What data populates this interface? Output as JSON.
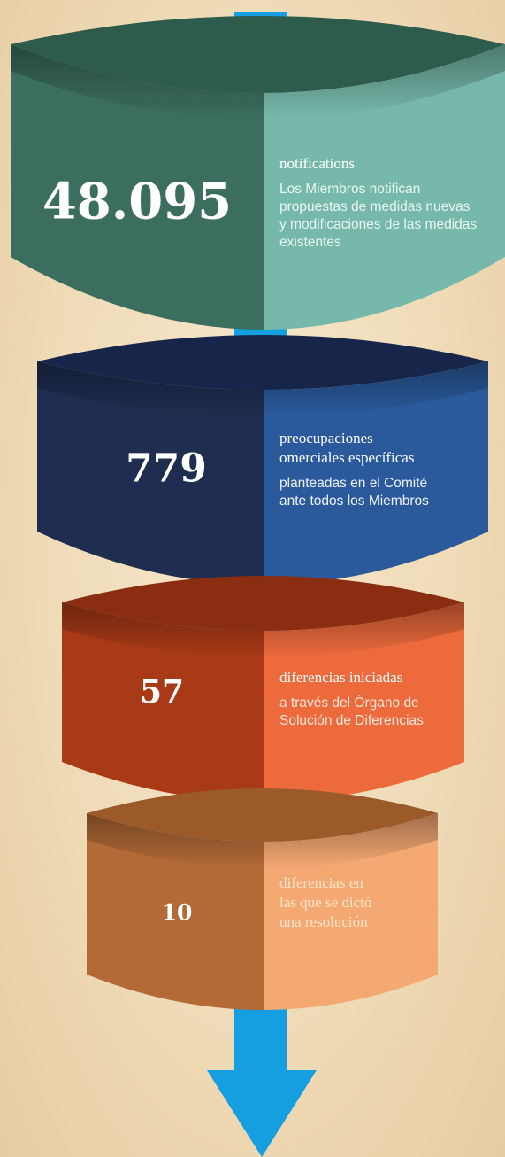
{
  "stages": [
    {
      "value": "48.095",
      "title": [
        "notifications"
      ],
      "description": [
        "Los Miembros notifican",
        "propuestas de medidas nuevas",
        "y modificaciones de las medidas",
        "existentes"
      ]
    },
    {
      "value": "779",
      "title": [
        "preocupaciones",
        "omerciales específicas"
      ],
      "description": [
        "planteadas en el Comité",
        "ante todos los Miembros"
      ]
    },
    {
      "value": "57",
      "title": [
        "diferencias iniciadas"
      ],
      "description": [
        "a través del Órgano de",
        "Solución de Diferencias"
      ]
    },
    {
      "value": "10",
      "title": [
        "diferencias en",
        "las que se dictó",
        "una resolución"
      ],
      "description": []
    }
  ]
}
